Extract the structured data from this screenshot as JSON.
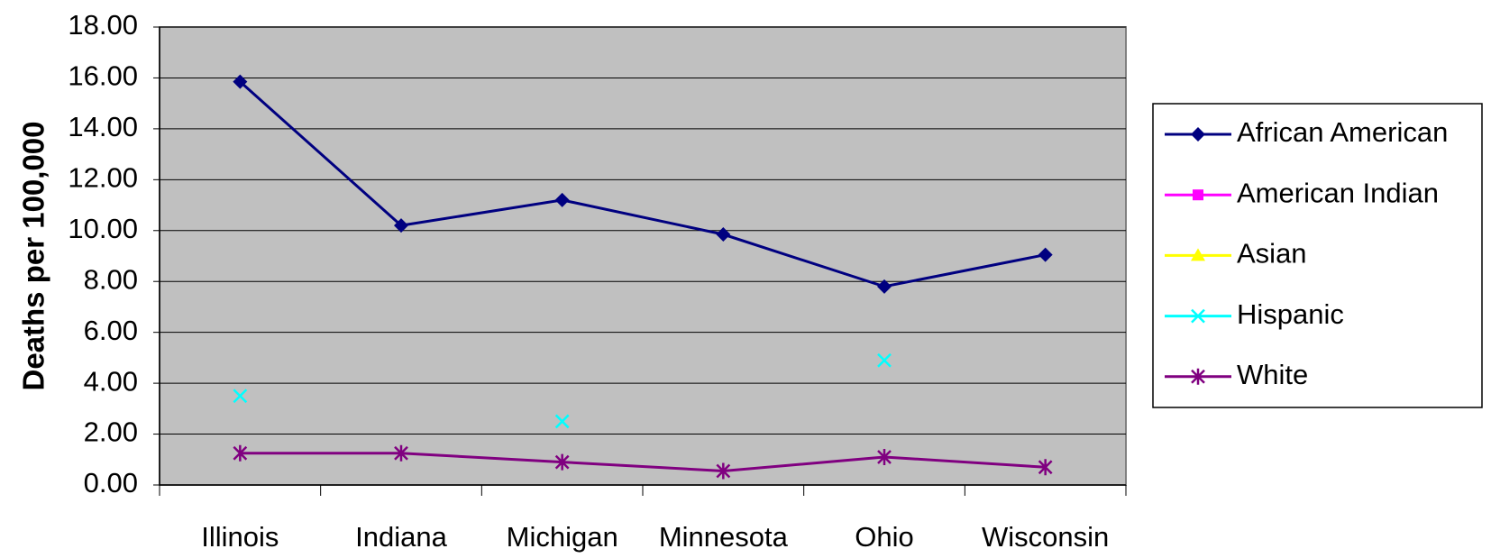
{
  "chart_data": {
    "type": "line",
    "y_label": "Deaths per 100,000",
    "categories": [
      "Illinois",
      "Indiana",
      "Michigan",
      "Minnesota",
      "Ohio",
      "Wisconsin"
    ],
    "series": [
      {
        "name": "African American",
        "color": "#000080",
        "marker": "diamond",
        "values": [
          15.85,
          10.2,
          11.2,
          9.85,
          7.8,
          9.05
        ]
      },
      {
        "name": "American Indian",
        "color": "#ff00ff",
        "marker": "square",
        "values": [
          null,
          null,
          null,
          null,
          null,
          null
        ]
      },
      {
        "name": "Asian",
        "color": "#ffff00",
        "marker": "triangle",
        "values": [
          null,
          null,
          null,
          null,
          null,
          null
        ]
      },
      {
        "name": "Hispanic",
        "color": "#00ffff",
        "marker": "x",
        "values": [
          3.5,
          null,
          2.5,
          null,
          4.9,
          null
        ]
      },
      {
        "name": "White",
        "color": "#800080",
        "marker": "asterisk",
        "values": [
          1.25,
          1.25,
          0.9,
          0.55,
          1.1,
          0.7
        ]
      }
    ],
    "ylim": [
      0,
      18
    ],
    "yticks": [
      {
        "value": 0,
        "label": "0.00"
      },
      {
        "value": 2,
        "label": "2.00"
      },
      {
        "value": 4,
        "label": "4.00"
      },
      {
        "value": 6,
        "label": "6.00"
      },
      {
        "value": 8,
        "label": "8.00"
      },
      {
        "value": 10,
        "label": "10.00"
      },
      {
        "value": 12,
        "label": "12.00"
      },
      {
        "value": 14,
        "label": "14.00"
      },
      {
        "value": 16,
        "label": "16.00"
      },
      {
        "value": 18,
        "label": "18.00"
      }
    ],
    "grid": true,
    "legend": "right"
  }
}
